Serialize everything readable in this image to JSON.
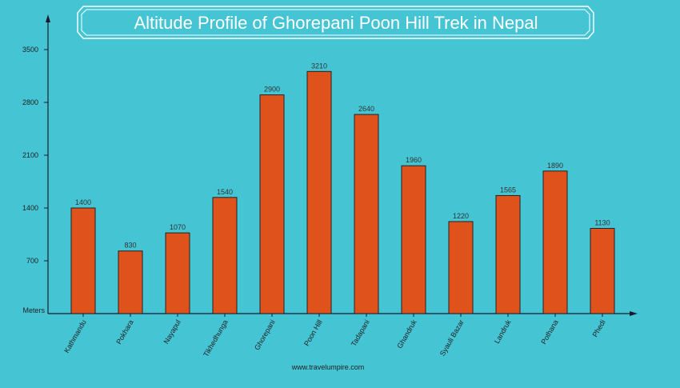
{
  "colors": {
    "background": "#45c4d4",
    "bar": "#e0521c",
    "bar_outline": "#222222",
    "axis": "#1a1a2e",
    "title_text": "#ffffff",
    "title_frame": "#ffffff"
  },
  "chart_data": {
    "type": "bar",
    "title": "Altitude Profile of Ghorepani Poon Hill Trek in Nepal",
    "ylabel": "Meters",
    "xlabel": "",
    "ylim": [
      0,
      3850
    ],
    "yticks": [
      700,
      1400,
      2100,
      2800,
      3500
    ],
    "grid": false,
    "categories": [
      "Kathmandu",
      "Pokhara",
      "Nayapul",
      "Tikhedhunga",
      "Ghorepani",
      "Poon Hill",
      "Tadapani",
      "Ghandruk",
      "Syauli Bazar",
      "Landruk",
      "Pothana",
      "Phedi"
    ],
    "values": [
      1400,
      830,
      1070,
      1540,
      2900,
      3210,
      2640,
      1960,
      1220,
      1565,
      1890,
      1130
    ],
    "data_labels": [
      "1400",
      "830",
      "1070",
      "1540",
      "2900",
      "3210",
      "2640",
      "1960",
      "1220",
      "1565",
      "1890",
      "1130"
    ]
  },
  "footer": {
    "source": "www.travelumpire.com"
  }
}
